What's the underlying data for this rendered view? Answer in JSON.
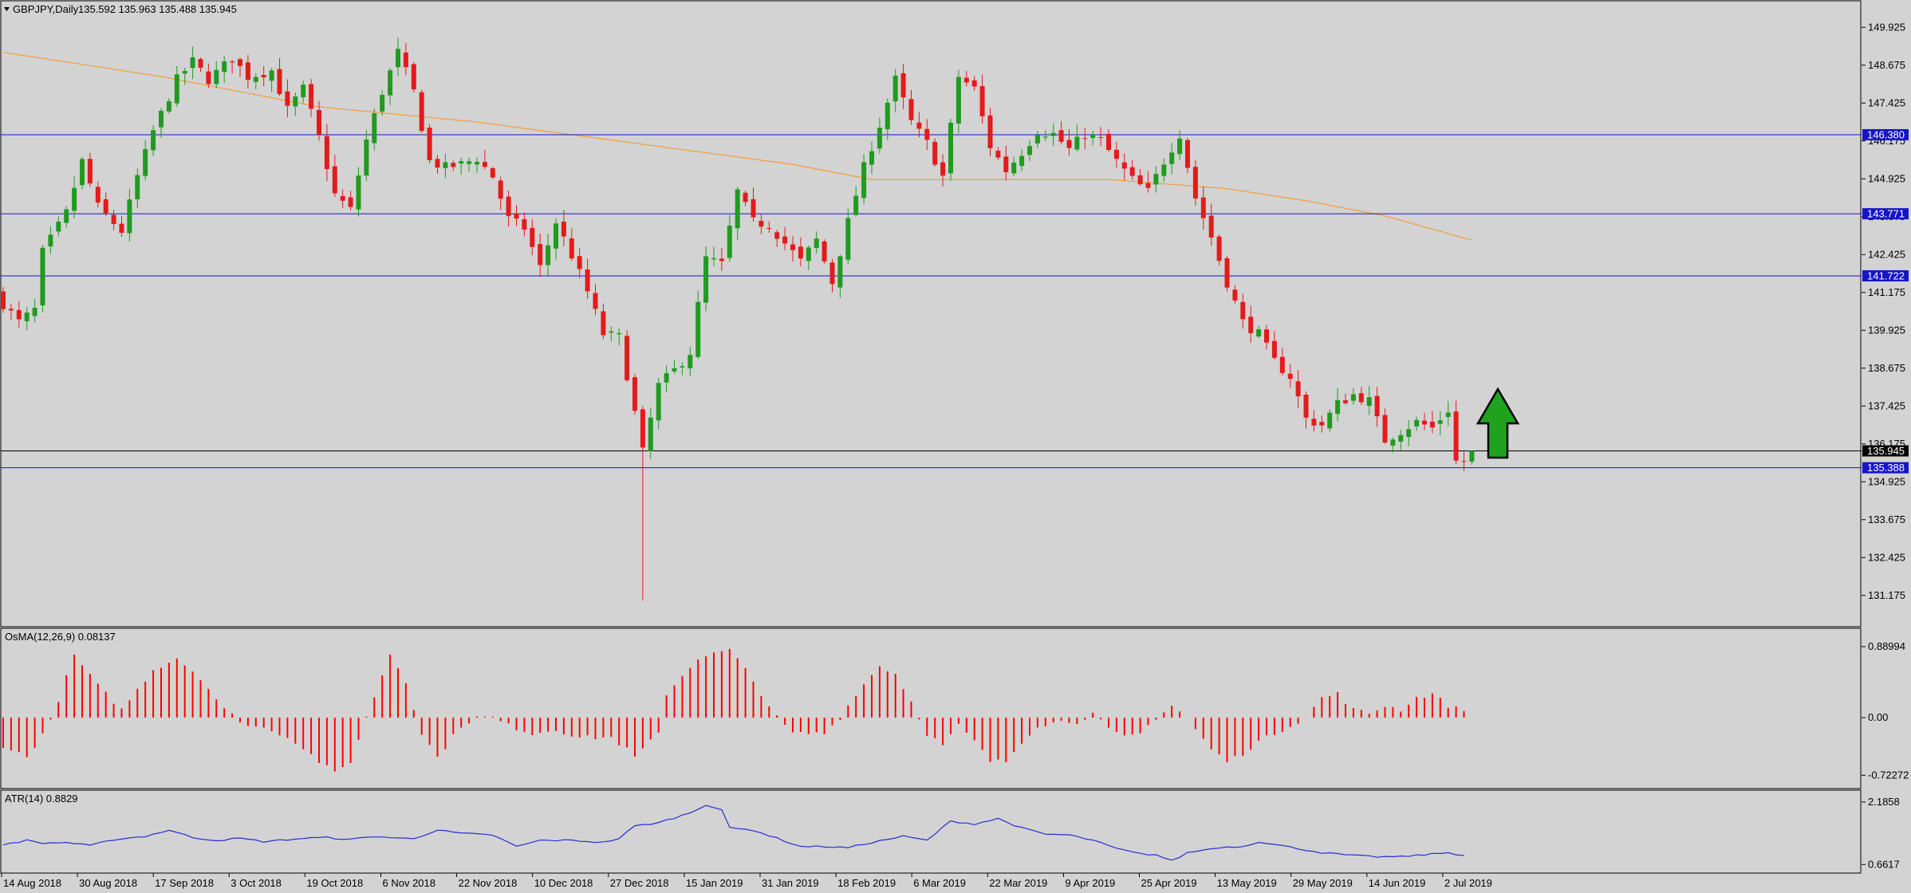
{
  "symbol_header": {
    "symbol_timeframe": "GBPJPY,Daily",
    "ohlc": "135.592 135.963 135.488 135.945"
  },
  "colors": {
    "background": "#d3d3d3",
    "bull": "#1f9b1f",
    "bear": "#e31b1b",
    "ma": "#f2a041",
    "hline": "#1515c8",
    "osma": "#ff0000",
    "atr": "#2b2bd6",
    "arrow": "#1fa31f"
  },
  "chart_data": [
    {
      "type": "candlestick",
      "title": "GBPJPY,Daily",
      "price_axis_ticks": [
        "149.925",
        "148.675",
        "147.425",
        "146.175",
        "144.925",
        "143.675",
        "142.425",
        "141.175",
        "139.925",
        "138.675",
        "137.425",
        "136.175",
        "134.925",
        "133.675",
        "132.425",
        "131.175"
      ],
      "ylim": [
        130.3,
        150.3
      ],
      "x_labels": [
        "14 Aug 2018",
        "30 Aug 2018",
        "17 Sep 2018",
        "3 Oct 2018",
        "19 Oct 2018",
        "6 Nov 2018",
        "22 Nov 2018",
        "10 Dec 2018",
        "27 Dec 2018",
        "15 Jan 2019",
        "31 Jan 2019",
        "18 Feb 2019",
        "6 Mar 2019",
        "22 Mar 2019",
        "9 Apr 2019",
        "25 Apr 2019",
        "13 May 2019",
        "29 May 2019",
        "14 Jun 2019",
        "2 Jul 2019"
      ],
      "close_path": [
        [
          0,
          140.8
        ],
        [
          2,
          140.2
        ],
        [
          4,
          140.6
        ],
        [
          5,
          142.5
        ],
        [
          8,
          143.8
        ],
        [
          10,
          145.5
        ],
        [
          12,
          144.0
        ],
        [
          15,
          143.2
        ],
        [
          17,
          145.0
        ],
        [
          19,
          146.5
        ],
        [
          22,
          148.2
        ],
        [
          24,
          148.8
        ],
        [
          26,
          148.2
        ],
        [
          29,
          148.9
        ],
        [
          31,
          148.3
        ],
        [
          34,
          148.5
        ],
        [
          36,
          147.2
        ],
        [
          38,
          147.9
        ],
        [
          40,
          146.3
        ],
        [
          42,
          144.4
        ],
        [
          44,
          143.9
        ],
        [
          46,
          146.2
        ],
        [
          48,
          147.8
        ],
        [
          50,
          149.1
        ],
        [
          52,
          147.8
        ],
        [
          54,
          145.5
        ],
        [
          56,
          145.3
        ],
        [
          58,
          145.4
        ],
        [
          60,
          145.6
        ],
        [
          62,
          145.0
        ],
        [
          64,
          143.6
        ],
        [
          66,
          143.3
        ],
        [
          68,
          142.0
        ],
        [
          70,
          143.5
        ],
        [
          72,
          142.4
        ],
        [
          74,
          141.2
        ],
        [
          76,
          139.8
        ],
        [
          78,
          139.7
        ],
        [
          80,
          137.2
        ],
        [
          81,
          135.9
        ],
        [
          83,
          138.1
        ],
        [
          85,
          138.6
        ],
        [
          87,
          139.2
        ],
        [
          89,
          142.3
        ],
        [
          91,
          142.1
        ],
        [
          93,
          144.5
        ],
        [
          95,
          143.5
        ],
        [
          97,
          143.4
        ],
        [
          99,
          142.8
        ],
        [
          101,
          142.2
        ],
        [
          103,
          142.9
        ],
        [
          105,
          141.5
        ],
        [
          107,
          143.5
        ],
        [
          109,
          145.3
        ],
        [
          111,
          146.7
        ],
        [
          113,
          148.2
        ],
        [
          115,
          146.8
        ],
        [
          117,
          146.1
        ],
        [
          119,
          145.0
        ],
        [
          121,
          148.3
        ],
        [
          123,
          147.9
        ],
        [
          125,
          146.0
        ],
        [
          127,
          145.2
        ],
        [
          129,
          145.8
        ],
        [
          131,
          146.5
        ],
        [
          133,
          146.4
        ],
        [
          135,
          145.9
        ],
        [
          137,
          146.4
        ],
        [
          139,
          146.2
        ],
        [
          141,
          145.5
        ],
        [
          143,
          144.9
        ],
        [
          145,
          144.5
        ],
        [
          147,
          145.5
        ],
        [
          149,
          146.4
        ],
        [
          151,
          144.3
        ],
        [
          153,
          143.0
        ],
        [
          155,
          141.5
        ],
        [
          157,
          140.2
        ],
        [
          159,
          139.8
        ],
        [
          161,
          138.9
        ],
        [
          163,
          138.4
        ],
        [
          165,
          137.0
        ],
        [
          167,
          136.8
        ],
        [
          169,
          137.5
        ],
        [
          171,
          137.8
        ],
        [
          173,
          137.6
        ],
        [
          175,
          136.3
        ],
        [
          177,
          136.6
        ],
        [
          179,
          136.9
        ],
        [
          181,
          136.7
        ],
        [
          183,
          137.3
        ],
        [
          184,
          135.6
        ],
        [
          185,
          135.6
        ],
        [
          186,
          135.945
        ]
      ],
      "moving_average": [
        [
          0,
          149.1
        ],
        [
          20,
          148.3
        ],
        [
          40,
          147.3
        ],
        [
          60,
          146.8
        ],
        [
          80,
          146.1
        ],
        [
          100,
          145.4
        ],
        [
          110,
          144.9
        ],
        [
          125,
          144.9
        ],
        [
          140,
          144.9
        ],
        [
          155,
          144.6
        ],
        [
          165,
          144.2
        ],
        [
          175,
          143.7
        ],
        [
          186,
          142.9
        ]
      ],
      "horizontal_levels": [
        {
          "value": 146.38,
          "label": "146.380",
          "style": "line-with-tag"
        },
        {
          "value": 143.771,
          "label": "143.771",
          "style": "line-with-tag"
        },
        {
          "value": 141.722,
          "label": "141.722",
          "style": "line-with-tag"
        },
        {
          "value": 135.388,
          "label": "135.388",
          "style": "line-with-tag"
        }
      ],
      "current_price": {
        "value": 135.945,
        "label": "135.945"
      },
      "annotation": "green up arrow after last candle",
      "grid": false
    },
    {
      "type": "bar",
      "title": "OsMA(12,26,9) 0.08137",
      "axis_ticks": [
        "0.88994",
        "0.00",
        "-0.72272"
      ],
      "ylim": [
        -0.85,
        1.0
      ],
      "values_path": [
        [
          0,
          -0.35
        ],
        [
          3,
          -0.5
        ],
        [
          6,
          -0.05
        ],
        [
          9,
          0.78
        ],
        [
          12,
          0.4
        ],
        [
          15,
          0.1
        ],
        [
          19,
          0.6
        ],
        [
          22,
          0.75
        ],
        [
          25,
          0.5
        ],
        [
          28,
          0.1
        ],
        [
          31,
          -0.1
        ],
        [
          34,
          -0.15
        ],
        [
          37,
          -0.3
        ],
        [
          40,
          -0.55
        ],
        [
          42,
          -0.7
        ],
        [
          44,
          -0.55
        ],
        [
          46,
          0.0
        ],
        [
          49,
          0.8
        ],
        [
          51,
          0.45
        ],
        [
          53,
          -0.2
        ],
        [
          55,
          -0.5
        ],
        [
          58,
          -0.1
        ],
        [
          60,
          0.0
        ],
        [
          62,
          0.0
        ],
        [
          64,
          -0.1
        ],
        [
          67,
          -0.2
        ],
        [
          70,
          -0.15
        ],
        [
          73,
          -0.25
        ],
        [
          77,
          -0.25
        ],
        [
          79,
          -0.4
        ],
        [
          80,
          -0.5
        ],
        [
          83,
          -0.2
        ],
        [
          84,
          0.3
        ],
        [
          88,
          0.75
        ],
        [
          92,
          0.85
        ],
        [
          94,
          0.6
        ],
        [
          96,
          0.3
        ],
        [
          98,
          0.0
        ],
        [
          100,
          -0.2
        ],
        [
          104,
          -0.2
        ],
        [
          106,
          0.0
        ],
        [
          108,
          0.3
        ],
        [
          111,
          0.65
        ],
        [
          113,
          0.55
        ],
        [
          115,
          0.2
        ],
        [
          117,
          -0.2
        ],
        [
          119,
          -0.35
        ],
        [
          121,
          -0.1
        ],
        [
          123,
          -0.3
        ],
        [
          125,
          -0.55
        ],
        [
          127,
          -0.55
        ],
        [
          129,
          -0.3
        ],
        [
          131,
          -0.1
        ],
        [
          134,
          -0.05
        ],
        [
          136,
          -0.05
        ],
        [
          138,
          0.05
        ],
        [
          140,
          -0.15
        ],
        [
          142,
          -0.25
        ],
        [
          144,
          -0.2
        ],
        [
          146,
          0.0
        ],
        [
          148,
          0.15
        ],
        [
          150,
          0.0
        ],
        [
          151,
          -0.15
        ],
        [
          153,
          -0.4
        ],
        [
          155,
          -0.55
        ],
        [
          157,
          -0.45
        ],
        [
          159,
          -0.3
        ],
        [
          161,
          -0.2
        ],
        [
          163,
          -0.1
        ],
        [
          165,
          0.0
        ],
        [
          167,
          0.25
        ],
        [
          169,
          0.3
        ],
        [
          171,
          0.1
        ],
        [
          173,
          0.05
        ],
        [
          175,
          0.15
        ],
        [
          177,
          0.1
        ],
        [
          179,
          0.25
        ],
        [
          181,
          0.3
        ],
        [
          183,
          0.15
        ],
        [
          185,
          0.08137
        ]
      ]
    },
    {
      "type": "line",
      "title": "ATR(14) 0.8829",
      "axis_ticks": [
        "2.1858",
        "0.6617"
      ],
      "ylim": [
        0.55,
        2.3
      ],
      "values_path": [
        [
          0,
          1.15
        ],
        [
          3,
          1.25
        ],
        [
          5,
          1.18
        ],
        [
          8,
          1.2
        ],
        [
          11,
          1.12
        ],
        [
          14,
          1.27
        ],
        [
          18,
          1.35
        ],
        [
          21,
          1.5
        ],
        [
          24,
          1.32
        ],
        [
          27,
          1.25
        ],
        [
          30,
          1.3
        ],
        [
          33,
          1.22
        ],
        [
          35,
          1.25
        ],
        [
          38,
          1.3
        ],
        [
          41,
          1.32
        ],
        [
          44,
          1.27
        ],
        [
          47,
          1.35
        ],
        [
          50,
          1.3
        ],
        [
          52,
          1.3
        ],
        [
          55,
          1.5
        ],
        [
          58,
          1.42
        ],
        [
          62,
          1.38
        ],
        [
          65,
          1.1
        ],
        [
          68,
          1.25
        ],
        [
          72,
          1.25
        ],
        [
          76,
          1.2
        ],
        [
          78,
          1.3
        ],
        [
          80,
          1.6
        ],
        [
          83,
          1.68
        ],
        [
          87,
          1.92
        ],
        [
          89,
          2.12
        ],
        [
          91,
          2.0
        ],
        [
          92,
          1.55
        ],
        [
          95,
          1.5
        ],
        [
          98,
          1.3
        ],
        [
          101,
          1.1
        ],
        [
          104,
          1.1
        ],
        [
          107,
          1.07
        ],
        [
          110,
          1.2
        ],
        [
          114,
          1.35
        ],
        [
          117,
          1.25
        ],
        [
          120,
          1.72
        ],
        [
          123,
          1.65
        ],
        [
          126,
          1.78
        ],
        [
          129,
          1.55
        ],
        [
          132,
          1.4
        ],
        [
          135,
          1.38
        ],
        [
          138,
          1.25
        ],
        [
          141,
          1.05
        ],
        [
          144,
          0.92
        ],
        [
          146,
          0.9
        ],
        [
          148,
          0.75
        ],
        [
          150,
          0.95
        ],
        [
          154,
          1.08
        ],
        [
          157,
          1.1
        ],
        [
          159,
          1.22
        ],
        [
          161,
          1.15
        ],
        [
          164,
          1.05
        ],
        [
          167,
          0.95
        ],
        [
          171,
          0.88
        ],
        [
          174,
          0.85
        ],
        [
          177,
          0.85
        ],
        [
          180,
          0.9
        ],
        [
          183,
          0.95
        ],
        [
          185,
          0.8829
        ]
      ]
    }
  ]
}
